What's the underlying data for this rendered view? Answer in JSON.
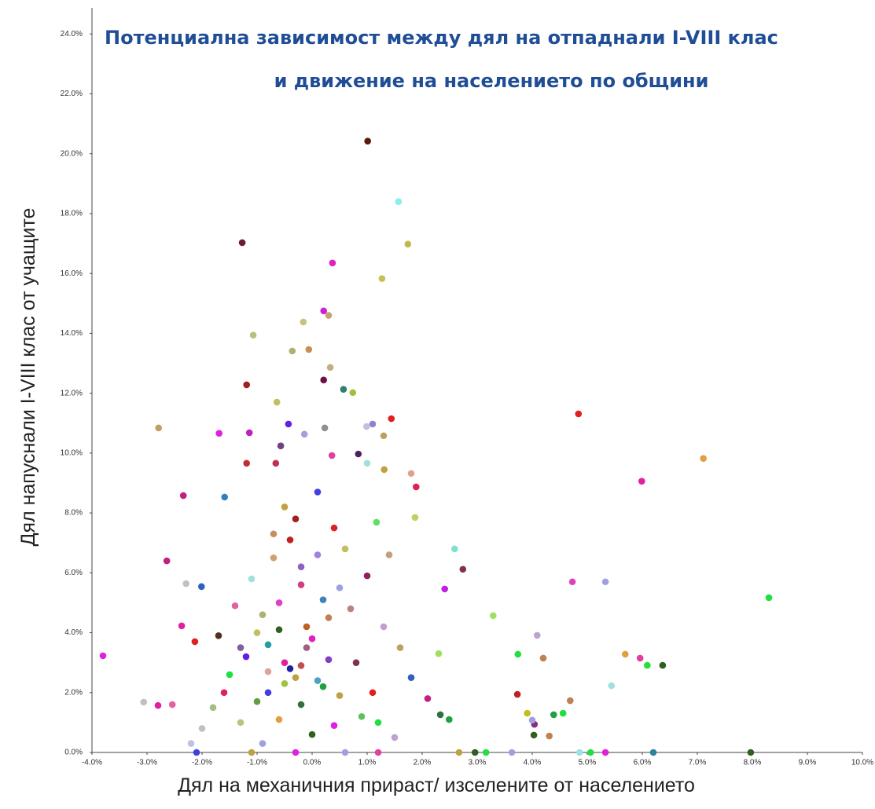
{
  "chart_data": {
    "type": "scatter",
    "title": [
      "Потенциална зависимост между дял на отпаднали I-VIII клас",
      "и движение на населението по общини"
    ],
    "xlabel": "Дял на механичния прираст/ изселените от населението",
    "ylabel": "Дял напуснали I-VIII клас от учащите",
    "xlim": [
      -4,
      10
    ],
    "ylim": [
      0,
      24.4
    ],
    "xticks": [
      {
        "value": -4,
        "label": "-4.0%"
      },
      {
        "value": -3,
        "label": "-3.0%"
      },
      {
        "value": -2,
        "label": "-2.0%"
      },
      {
        "value": -1,
        "label": "-1.0%"
      },
      {
        "value": 0,
        "label": "0.0%"
      },
      {
        "value": 1,
        "label": "1.0%"
      },
      {
        "value": 2,
        "label": "2.0%"
      },
      {
        "value": 3,
        "label": "3.0%"
      },
      {
        "value": 4,
        "label": "4.0%"
      },
      {
        "value": 5,
        "label": "5.0%"
      },
      {
        "value": 6,
        "label": "6.0%"
      },
      {
        "value": 7,
        "label": "7.0%"
      },
      {
        "value": 8,
        "label": "8.0%"
      },
      {
        "value": 9,
        "label": "9.0%"
      },
      {
        "value": 10,
        "label": "10.0%"
      }
    ],
    "yticks": [
      {
        "value": 0,
        "label": "0.0%"
      },
      {
        "value": 2,
        "label": "2.0%"
      },
      {
        "value": 4,
        "label": "4.0%"
      },
      {
        "value": 6,
        "label": "6.0%"
      },
      {
        "value": 8,
        "label": "8.0%"
      },
      {
        "value": 10,
        "label": "10.0%"
      },
      {
        "value": 12,
        "label": "12.0%"
      },
      {
        "value": 14,
        "label": "14.0%"
      },
      {
        "value": 16,
        "label": "16.0%"
      },
      {
        "value": 18,
        "label": "18.0%"
      },
      {
        "value": 20,
        "label": "20.0%"
      },
      {
        "value": 22,
        "label": "22.0%"
      },
      {
        "value": 24,
        "label": "24.0%"
      }
    ],
    "x": [
      1.01,
      1.57,
      1.74,
      -1.27,
      0.37,
      1.27,
      0.21,
      0.3,
      -0.16,
      -1.07,
      -0.06,
      -0.36,
      0.33,
      0.21,
      -1.19,
      0.57,
      0.74,
      -0.64,
      1.44,
      4.84,
      1.1,
      0.99,
      0.23,
      -0.43,
      -0.14,
      -2.79,
      -1.69,
      -1.14,
      1.3,
      7.11,
      -0.57,
      0.84,
      0.36,
      -1.19,
      -0.66,
      1.0,
      1.31,
      1.8,
      5.99,
      1.89,
      -2.34,
      -1.59,
      1.87,
      1.17,
      2.59,
      -2.64,
      2.74,
      4.73,
      5.33,
      8.3,
      -2.29,
      -2.01,
      2.41,
      3.29,
      4.09,
      3.74,
      4.2,
      5.69,
      5.96,
      6.37,
      6.09,
      5.44,
      4.69,
      3.73,
      -3.8,
      -3.06,
      -2.8,
      -2.54,
      -2.37,
      -2.13,
      4.56,
      3.91,
      4.04,
      4.39,
      4.0,
      4.03,
      4.31,
      2.33,
      2.49,
      7.97,
      6.2,
      5.33,
      5.06,
      4.86,
      3.63,
      3.16,
      2.96,
      2.67,
      -0.5,
      -0.3,
      -0.8,
      -0.1,
      0.2,
      -1.0,
      -0.6,
      -0.2,
      0.3,
      -1.2,
      -0.4,
      0.5,
      -0.7,
      -1.5,
      -1.8,
      -2.0,
      0.8,
      1.1,
      1.3,
      0.9,
      0.0,
      -0.9,
      -1.3,
      0.4,
      -0.2,
      1.6,
      1.8,
      2.1,
      2.3,
      -0.5,
      0.1,
      -0.3,
      0.6,
      -1.1,
      -1.4,
      -1.7,
      0.7,
      1.0,
      1.4,
      -0.8,
      -0.6,
      0.3,
      -0.1,
      0.2,
      -1.6,
      -2.2,
      -1.0,
      0.5,
      -0.4,
      0.0,
      -0.9,
      -0.2,
      0.1,
      -0.7,
      0.4,
      1.2,
      1.5,
      -0.3,
      -1.1,
      0.6,
      1.2,
      -2.1,
      -0.6,
      -0.5,
      -0.2,
      0.1,
      -0.8,
      -1.3
    ],
    "values": [
      20.42,
      18.4,
      16.98,
      17.03,
      16.35,
      15.83,
      14.75,
      14.6,
      14.38,
      13.94,
      13.46,
      13.41,
      12.86,
      12.44,
      12.28,
      12.13,
      12.02,
      11.7,
      11.15,
      11.31,
      10.97,
      10.89,
      10.84,
      10.97,
      10.63,
      10.84,
      10.66,
      10.68,
      10.58,
      9.82,
      10.24,
      9.97,
      9.92,
      9.66,
      9.66,
      9.66,
      9.45,
      9.32,
      9.06,
      8.87,
      8.58,
      8.53,
      7.85,
      7.69,
      6.8,
      6.4,
      6.12,
      5.7,
      5.7,
      5.17,
      5.64,
      5.54,
      5.46,
      4.57,
      3.91,
      3.28,
      3.15,
      3.28,
      3.15,
      2.91,
      2.91,
      2.23,
      1.73,
      1.94,
      3.23,
      1.68,
      1.57,
      1.6,
      4.23,
      3.7,
      1.31,
      1.31,
      0.94,
      1.26,
      1.08,
      0.58,
      0.55,
      1.26,
      1.1,
      0,
      0,
      0,
      0,
      0,
      0,
      0,
      0,
      0,
      3.0,
      2.5,
      2.0,
      3.5,
      2.2,
      4.0,
      5.0,
      6.2,
      4.5,
      3.2,
      7.1,
      5.5,
      6.5,
      2.6,
      1.5,
      0.8,
      3.0,
      2.0,
      4.2,
      1.2,
      0.6,
      0.3,
      1.0,
      0.9,
      1.6,
      3.5,
      2.5,
      1.8,
      3.3,
      8.2,
      8.7,
      7.8,
      6.8,
      5.8,
      4.9,
      3.9,
      4.8,
      5.9,
      6.6,
      3.6,
      1.1,
      3.1,
      4.2,
      5.1,
      2.0,
      0.3,
      1.7,
      1.9,
      2.8,
      3.8,
      4.6,
      5.6,
      6.6,
      7.3,
      7.5,
      1.0,
      0.5,
      0.0,
      0.0,
      0.0,
      0.0,
      0.0,
      4.1,
      2.3,
      2.9,
      2.4,
      2.7,
      3.5
    ],
    "colors": [
      "#5a1a0a",
      "#88eeee",
      "#c5b84a",
      "#6b1a3a",
      "#e020c0",
      "#c8c050",
      "#d020d0",
      "#c9a070",
      "#c8c080",
      "#b8c080",
      "#c89050",
      "#b0b070",
      "#c0b080",
      "#701040",
      "#a02020",
      "#308070",
      "#a0c040",
      "#c0c060",
      "#e02020",
      "#e02020",
      "#9080d0",
      "#c0c0e0",
      "#909090",
      "#6020e0",
      "#a0a0e0",
      "#c0a060",
      "#e020e0",
      "#c020c0",
      "#c0a060",
      "#e0a040",
      "#704080",
      "#502060",
      "#e040a0",
      "#c03030",
      "#c03050",
      "#a0e0e0",
      "#c0a040",
      "#e0a090",
      "#e020a0",
      "#e02050",
      "#c02080",
      "#3080c0",
      "#c0d060",
      "#60e060",
      "#80e0d0",
      "#c02080",
      "#803050",
      "#e040c0",
      "#a0a0e0",
      "#20e040",
      "#c0c0c0",
      "#3060c0",
      "#c020e0",
      "#a0e060",
      "#c0a0d0",
      "#20e040",
      "#c08050",
      "#e0a040",
      "#e040a0",
      "#306020",
      "#20e040",
      "#a0e0e0",
      "#c08050",
      "#c02020",
      "#e020e0",
      "#c0c0c0",
      "#e020a0",
      "#e060a0",
      "#e020a0",
      "#e02020",
      "#20e040",
      "#c0c020",
      "#803080",
      "#20a040",
      "#a0a0e0",
      "#306020",
      "#c08050",
      "#307040",
      "#20a040",
      "#306020",
      "#3080a0",
      "#e020e0",
      "#20e040",
      "#a0e0e0",
      "#a0a0e0",
      "#20e040",
      "#306020",
      "#c0a040",
      "#e020a0",
      "#c0a040",
      "#4040e0",
      "#a06080",
      "#20a040",
      "#c0c060",
      "#e040c0",
      "#9060c0",
      "#c08050",
      "#6020e0",
      "#c02020",
      "#a0a0e0",
      "#d0a070",
      "#20e040",
      "#a0c080",
      "#c0c0c0",
      "#803050",
      "#e02020",
      "#c0a0d0",
      "#60c060",
      "#306020",
      "#a0a0e0",
      "#c0c080",
      "#e020e0",
      "#307040",
      "#c0a060",
      "#3060c0",
      "#c02080",
      "#a0e060",
      "#c0a040",
      "#4040e0",
      "#a02020",
      "#c0c060",
      "#a0e0e0",
      "#e060a0",
      "#503020",
      "#c08080",
      "#902060",
      "#c0a080",
      "#20a0a0",
      "#e0a040",
      "#8040c0",
      "#c06020",
      "#4080c0",
      "#e02060",
      "#c0c0e0",
      "#60a040",
      "#c0a040",
      "#2020a0",
      "#e020c0",
      "#b0b070",
      "#d04080",
      "#a080e0",
      "#c09060",
      "#e02020",
      "#20e040",
      "#c0a0d0",
      "#e020e0",
      "#c0a040",
      "#a0a0e0",
      "#e040a0",
      "#4040e0",
      "#306020",
      "#a0c040",
      "#c05050",
      "#50a0c0",
      "#e0a0a0",
      "#8060a0"
    ]
  }
}
